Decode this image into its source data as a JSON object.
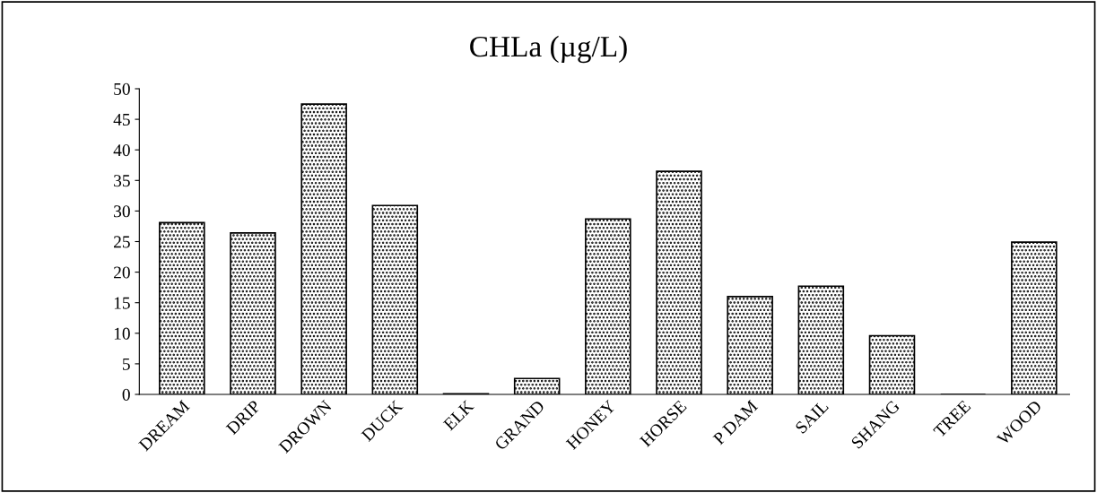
{
  "chart_data": {
    "type": "bar",
    "title": "CHLa (µg/L)",
    "categories": [
      "DREAM",
      "DRIP",
      "DROWN",
      "DUCK",
      "ELK",
      "GRAND",
      "HONEY",
      "HORSE",
      "P DAM",
      "SAIL",
      "SHANG",
      "TREE",
      "WOOD"
    ],
    "values": [
      28.1,
      26.4,
      47.5,
      30.9,
      0.1,
      2.6,
      28.7,
      36.5,
      16.0,
      17.7,
      9.6,
      0,
      24.9
    ],
    "color": "#000000",
    "ylim": [
      0,
      50
    ],
    "yticks": [
      0,
      5,
      10,
      15,
      20,
      25,
      30,
      35,
      40,
      45,
      50
    ],
    "grid": false,
    "legend": false
  }
}
